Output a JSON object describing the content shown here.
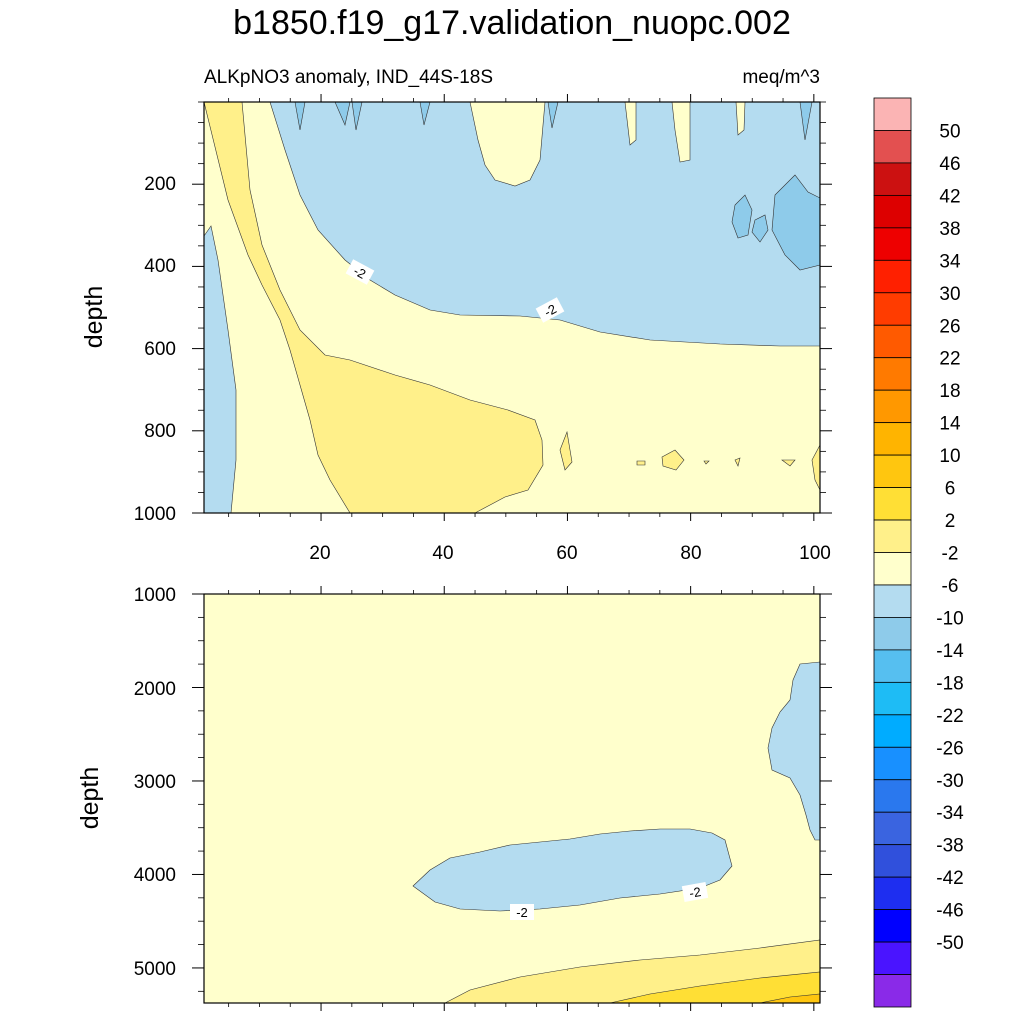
{
  "chart_data": {
    "type": "contour",
    "title": "b1850.f19_g17.validation_nuopc.002",
    "subtitle_left": "ALKpNO3 anomaly, IND_44S-18S",
    "subtitle_right": "meq/m^3",
    "colorbar": {
      "levels": [
        "50",
        "46",
        "42",
        "38",
        "34",
        "30",
        "26",
        "22",
        "18",
        "14",
        "10",
        "6",
        "2",
        "-2",
        "-6",
        "-10",
        "-14",
        "-18",
        "-22",
        "-26",
        "-30",
        "-34",
        "-38",
        "-42",
        "-46",
        "-50"
      ],
      "colors": [
        "#fbb4b4",
        "#e35050",
        "#cc1111",
        "#dd0000",
        "#ee0000",
        "#ff2000",
        "#ff3c00",
        "#ff5a00",
        "#ff7a00",
        "#ff9800",
        "#ffb400",
        "#ffc60f",
        "#ffdf35",
        "#fff08a",
        "#ffffcc",
        "#b4dcf0",
        "#8ecbea",
        "#56bff0",
        "#1ebcf5",
        "#00acff",
        "#1890ff",
        "#2a78ee",
        "#3a64e0",
        "#3050dc",
        "#1e2ef0",
        "#0000ff",
        "#4a14ff",
        "#8a2ae8"
      ]
    },
    "panels": [
      {
        "name": "upper",
        "ylabel": "depth",
        "ylim": [
          1000,
          0
        ],
        "xlim": [
          1,
          101
        ],
        "x_ticks": [
          "20",
          "40",
          "60",
          "80",
          "100"
        ],
        "y_ticks": [
          "200",
          "400",
          "600",
          "800",
          "1000"
        ],
        "contour_labels": [
          "-2",
          "-2"
        ]
      },
      {
        "name": "lower",
        "ylabel": "depth",
        "ylim": [
          5375,
          1000
        ],
        "xlim": [
          1,
          101
        ],
        "y_ticks": [
          "1000",
          "2000",
          "3000",
          "4000",
          "5000"
        ],
        "contour_labels": [
          "-2",
          "-2"
        ]
      }
    ]
  }
}
